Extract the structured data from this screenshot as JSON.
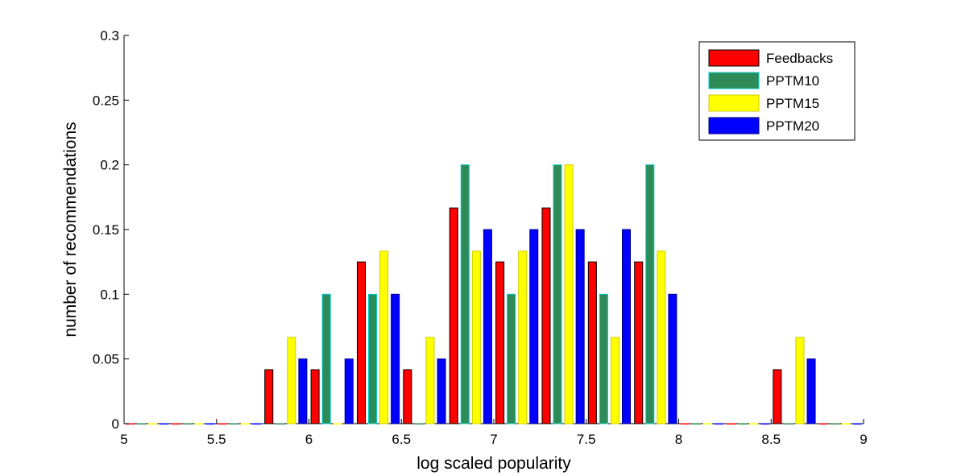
{
  "chart_data": {
    "type": "bar",
    "xlabel": "log scaled popularity",
    "ylabel": "number of recommendations",
    "xlim": [
      5,
      9
    ],
    "ylim": [
      0,
      0.3
    ],
    "xticks": [
      "5",
      "5.5",
      "6",
      "6.5",
      "7",
      "7.5",
      "8",
      "8.5",
      "9"
    ],
    "yticks": [
      "0",
      "0.05",
      "0.1",
      "0.15",
      "0.2",
      "0.25",
      "0.3"
    ],
    "bin_centers": [
      5.125,
      5.375,
      5.625,
      5.875,
      6.125,
      6.375,
      6.625,
      6.875,
      7.125,
      7.375,
      7.625,
      7.875,
      8.125,
      8.375,
      8.625,
      8.875
    ],
    "series": [
      {
        "name": "Feedbacks",
        "color": "#ff0000",
        "edge": "#000000",
        "values": [
          0,
          0,
          0,
          0.0417,
          0.0417,
          0.125,
          0.0417,
          0.1667,
          0.125,
          0.1667,
          0.125,
          0.125,
          0,
          0,
          0.0417,
          0
        ]
      },
      {
        "name": "PPTM10",
        "color": "#2e8b57",
        "edge": "#00cccc",
        "values": [
          0,
          0,
          0,
          0,
          0.1,
          0.1,
          0,
          0.2,
          0.1,
          0.2,
          0.1,
          0.2,
          0,
          0,
          0,
          0
        ]
      },
      {
        "name": "PPTM15",
        "color": "#ffff00",
        "edge": "#cccc00",
        "values": [
          0,
          0,
          0,
          0.0667,
          0,
          0.1333,
          0.0667,
          0.1333,
          0.1333,
          0.2,
          0.0667,
          0.1333,
          0,
          0,
          0.0667,
          0
        ]
      },
      {
        "name": "PPTM20",
        "color": "#0000ff",
        "edge": "#000080",
        "values": [
          0,
          0,
          0,
          0.05,
          0.05,
          0.1,
          0.05,
          0.15,
          0.15,
          0.15,
          0.15,
          0.1,
          0,
          0,
          0.05,
          0
        ]
      }
    ],
    "legend_position": "top-right",
    "grid": false
  }
}
